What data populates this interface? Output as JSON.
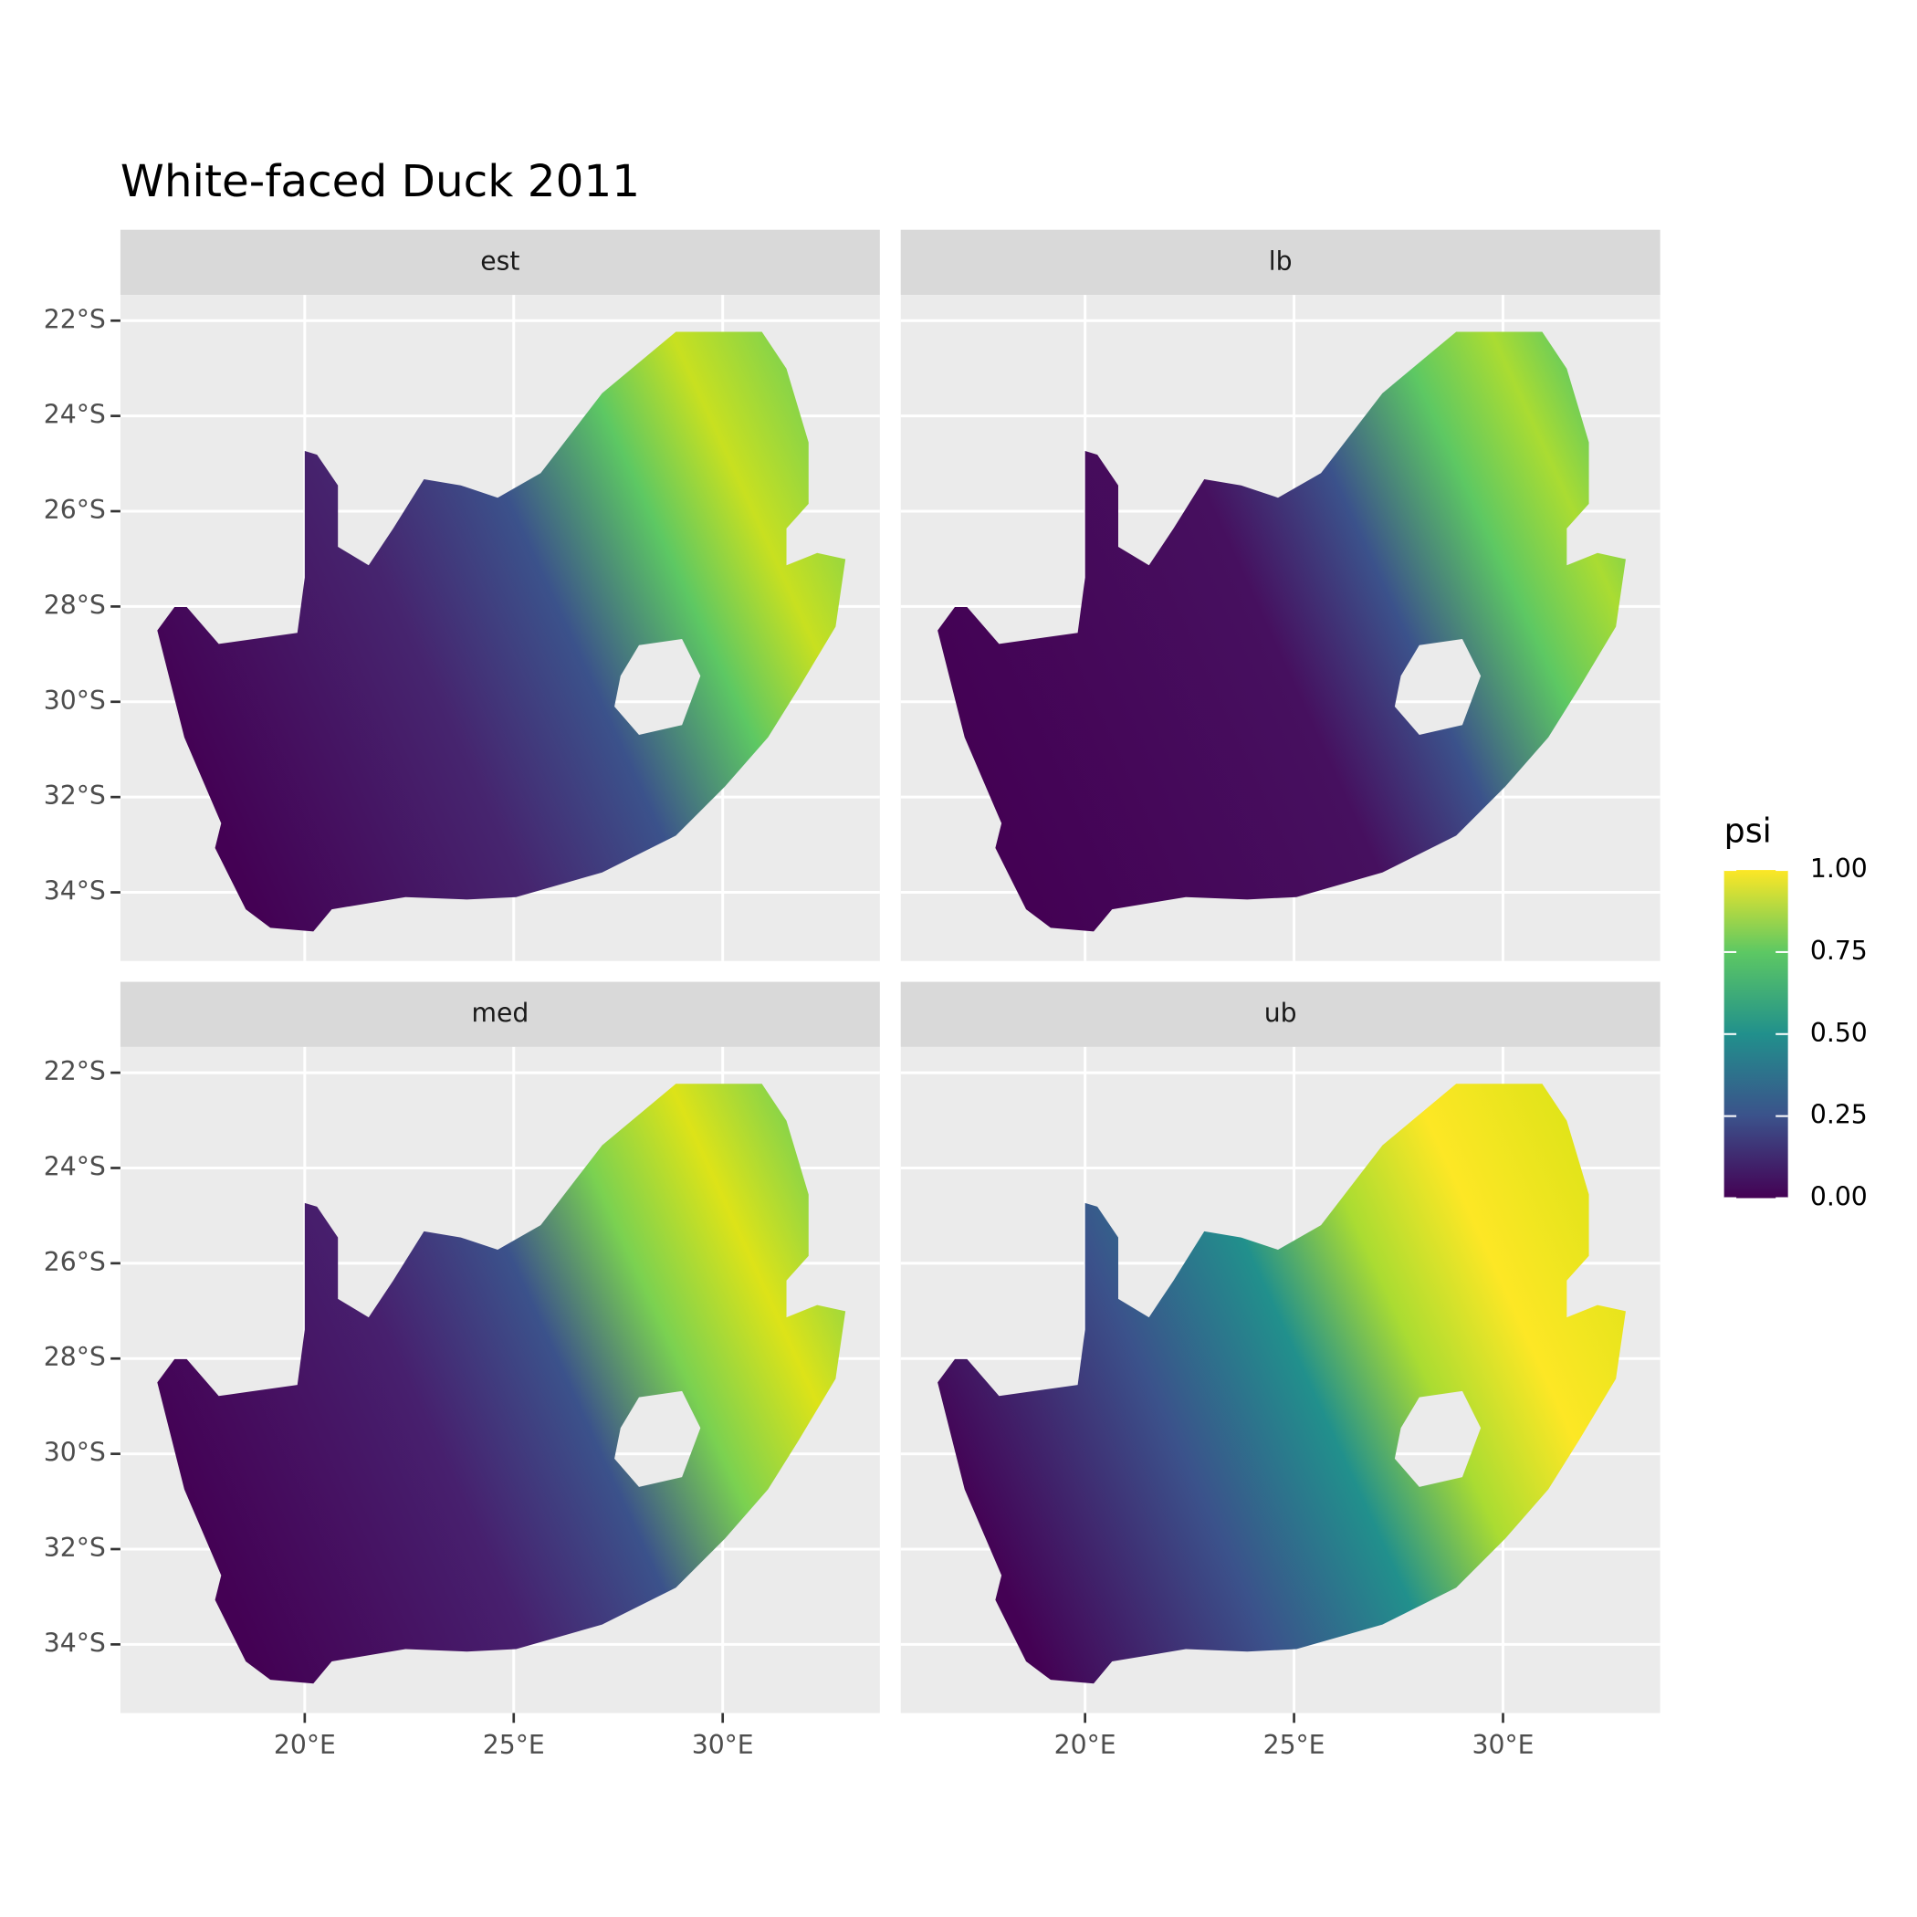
{
  "chart_data": {
    "type": "raster-map",
    "title": "White-faced Duck 2011",
    "panels": [
      "est",
      "lb",
      "med",
      "ub"
    ],
    "xlim": [
      15.59,
      33.76
    ],
    "ylim": [
      -35.44,
      -21.46
    ],
    "xticks": [
      {
        "value": 20,
        "label": "20°E"
      },
      {
        "value": 25,
        "label": "25°E"
      },
      {
        "value": 30,
        "label": "30°E"
      }
    ],
    "yticks": [
      {
        "value": -22,
        "label": "22°S"
      },
      {
        "value": -24,
        "label": "24°S"
      },
      {
        "value": -26,
        "label": "26°S"
      },
      {
        "value": -28,
        "label": "28°S"
      },
      {
        "value": -30,
        "label": "30°S"
      },
      {
        "value": -32,
        "label": "32°S"
      },
      {
        "value": -34,
        "label": "34°S"
      }
    ],
    "grid": true,
    "legend": {
      "title": "psi",
      "limits": [
        0,
        1
      ],
      "ticks": [
        {
          "value": 0,
          "label": "0.00"
        },
        {
          "value": 0.25,
          "label": "0.25"
        },
        {
          "value": 0.5,
          "label": "0.50"
        },
        {
          "value": 0.75,
          "label": "0.75"
        },
        {
          "value": 1,
          "label": "1.00"
        }
      ],
      "colors": [
        "#440154",
        "#3b528b",
        "#21908c",
        "#5dc863",
        "#fde725"
      ]
    }
  }
}
